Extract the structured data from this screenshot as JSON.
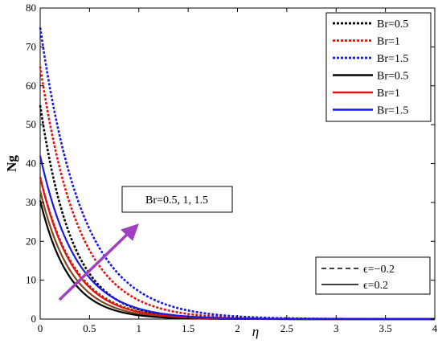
{
  "chart_data": {
    "type": "line",
    "xlabel": "η",
    "ylabel": "Ng",
    "xlim": [
      0,
      4
    ],
    "ylim": [
      0,
      80
    ],
    "x_ticks": [
      "0",
      "0.5",
      "1",
      "1.5",
      "2",
      "2.5",
      "3",
      "3.5",
      "4"
    ],
    "y_ticks": [
      "0",
      "10",
      "20",
      "30",
      "40",
      "50",
      "60",
      "70",
      "80"
    ],
    "grid": false,
    "legend_placement": "top-right",
    "series": [
      {
        "name": "Br=0.5",
        "color": "#000000",
        "style": "dotted",
        "y0": 55,
        "decay": 3.1
      },
      {
        "name": "Br=1",
        "color": "#e81010",
        "style": "dotted",
        "y0": 65,
        "decay": 2.6
      },
      {
        "name": "Br=1.5",
        "color": "#1a1ae6",
        "style": "dotted",
        "y0": 75,
        "decay": 2.35
      },
      {
        "name": "Br=0.5",
        "color": "#000000",
        "style": "solid",
        "y0": 30.5,
        "decay": 3.45
      },
      {
        "name": "Br=1",
        "color": "#e81010",
        "style": "solid",
        "y0": 36.5,
        "decay": 3.0
      },
      {
        "name": "Br=1.5",
        "color": "#1a1ae6",
        "style": "solid",
        "y0": 42,
        "decay": 2.75
      }
    ],
    "extra_curves": [
      {
        "color": "#7a4a1a",
        "style": "dotted",
        "y0": 36.5,
        "decay": 2.9
      },
      {
        "color": "#7a4a1a",
        "style": "solid",
        "y0": 33,
        "decay": 3.2
      }
    ],
    "annotations": {
      "arrow_label": "Br=0.5, 1, 1.5",
      "arrow_color": "#a040c0",
      "line_legend": [
        {
          "label": "ϵ=−0.2",
          "style": "dashed"
        },
        {
          "label": "ϵ=0.2",
          "style": "solid"
        }
      ]
    }
  }
}
